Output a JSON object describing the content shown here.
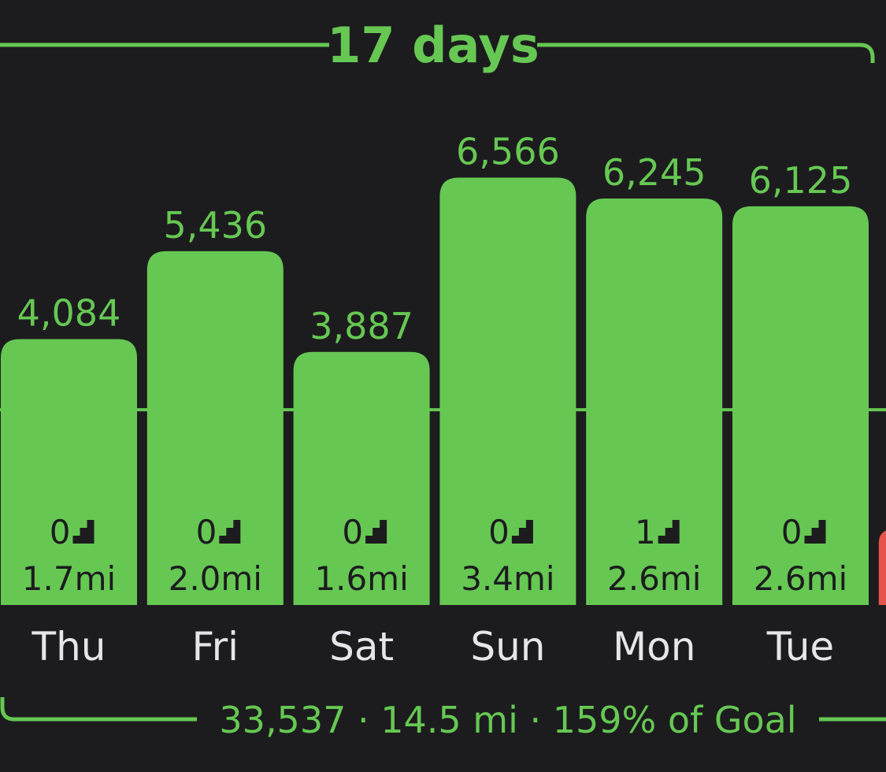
{
  "streak": {
    "label": "17 days"
  },
  "summary": {
    "text": "33,537 · 14.5 mi · 159% of Goal"
  },
  "colors": {
    "background": "#1c1c1e",
    "bar": "#66c853",
    "text_accent": "#66c853",
    "day_label": "#e5e5ea",
    "partial_bar": "#e5534b"
  },
  "icons": {
    "stairs": "stairs-icon"
  },
  "chart_data": {
    "type": "bar",
    "categories": [
      "Thu",
      "Fri",
      "Sat",
      "Sun",
      "Mon",
      "Tue"
    ],
    "values": [
      4084,
      5436,
      3887,
      6566,
      6245,
      6125
    ],
    "value_labels": [
      "4,084",
      "5,436",
      "3,887",
      "6,566",
      "6,245",
      "6,125"
    ],
    "flights": [
      "0",
      "0",
      "0",
      "0",
      "1",
      "0"
    ],
    "distances": [
      "1.7mi",
      "2.0mi",
      "1.6mi",
      "3.4mi",
      "2.6mi",
      "2.6mi"
    ],
    "goal": 3000,
    "goal_line": true,
    "ylim": [
      0,
      7600
    ],
    "partial_next_bar": true,
    "title": "",
    "xlabel": "",
    "ylabel": ""
  }
}
